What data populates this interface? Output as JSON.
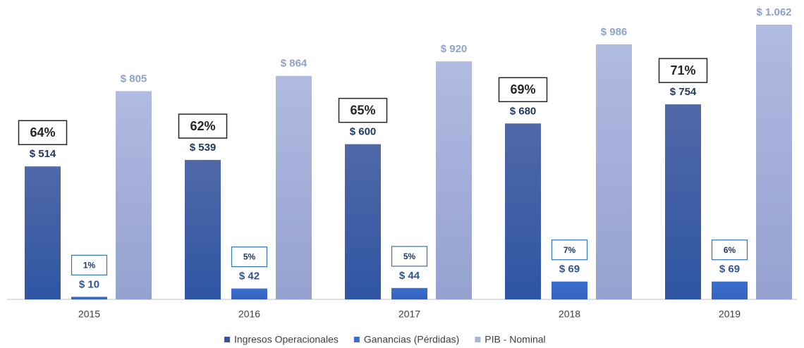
{
  "chart_data": {
    "type": "bar",
    "categories": [
      "2015",
      "2016",
      "2017",
      "2018",
      "2019"
    ],
    "series": [
      {
        "name": "Ingresos Operacionales",
        "color": "#2f55a4",
        "values": [
          514,
          539,
          600,
          680,
          754
        ],
        "value_labels": [
          "$ 514",
          "$ 539",
          "$ 600",
          "$ 680",
          "$ 754"
        ],
        "box_labels": [
          "64%",
          "62%",
          "65%",
          "69%",
          "71%"
        ]
      },
      {
        "name": "Ganancias (Pérdidas)",
        "color": "#3a6fd0",
        "values": [
          10,
          42,
          44,
          69,
          69
        ],
        "value_labels": [
          "$ 10",
          "$ 42",
          "$ 44",
          "$ 69",
          "$ 69"
        ],
        "box_labels": [
          "1%",
          "5%",
          "5%",
          "7%",
          "6%"
        ]
      },
      {
        "name": "PIB - Nominal",
        "color": "#aab5de",
        "values": [
          805,
          864,
          920,
          986,
          1062
        ],
        "value_labels": [
          "$ 805",
          "$ 864",
          "$ 920",
          "$ 986",
          "$ 1.062"
        ]
      }
    ],
    "legend": "bottom"
  }
}
